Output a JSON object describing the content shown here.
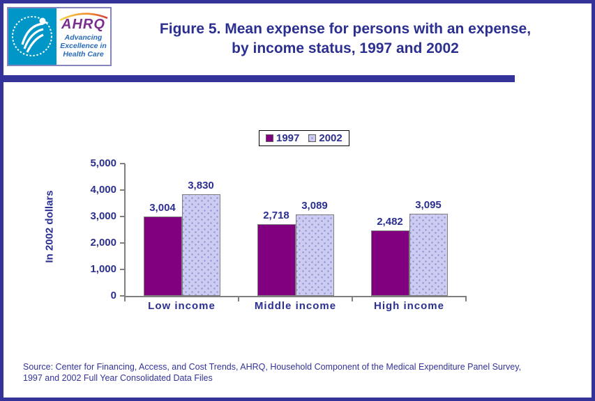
{
  "header": {
    "title_line1": "Figure 5. Mean expense for persons with an expense,",
    "title_line2": "by income status, 1997 and 2002",
    "logo": {
      "ahrq": "AHRQ",
      "tagline_line1": "Advancing",
      "tagline_line2": "Excellence in",
      "tagline_line3": "Health Care"
    }
  },
  "chart_data": {
    "type": "bar",
    "title": "Figure 5. Mean expense for persons with an expense, by income status, 1997 and 2002",
    "categories": [
      "Low income",
      "Middle income",
      "High income"
    ],
    "series": [
      {
        "name": "1997",
        "color": "#800080",
        "values": [
          3004,
          2718,
          2482
        ],
        "value_labels": [
          "3,004",
          "2,718",
          "2,482"
        ]
      },
      {
        "name": "2002",
        "color": "#CCCCF2",
        "values": [
          3830,
          3089,
          3095
        ],
        "value_labels": [
          "3,830",
          "3,089",
          "3,095"
        ]
      }
    ],
    "xlabel": "",
    "ylabel": "In 2002 dollars",
    "ylim": [
      0,
      5000
    ],
    "ytick_step": 1000,
    "ytick_labels": [
      "0",
      "1,000",
      "2,000",
      "3,000",
      "4,000",
      "5,000"
    ],
    "grid": false,
    "legend_position": "top-center"
  },
  "footer": {
    "source_line1": "Source: Center for Financing, Access, and Cost Trends, AHRQ, Household Component of the Medical Expenditure Panel Survey,",
    "source_line2": "1997 and 2002 Full Year Consolidated Data Files"
  },
  "colors": {
    "frame": "#333399",
    "navy_text": "#2B2F90",
    "axis_gray": "#7F7F7F",
    "bar_1997": "#800080",
    "bar_2002": "#CCCCF2",
    "hhs_blue": "#0096C8",
    "ahrq_purple": "#7B2E8E",
    "tagline_blue": "#2A6BB8"
  }
}
